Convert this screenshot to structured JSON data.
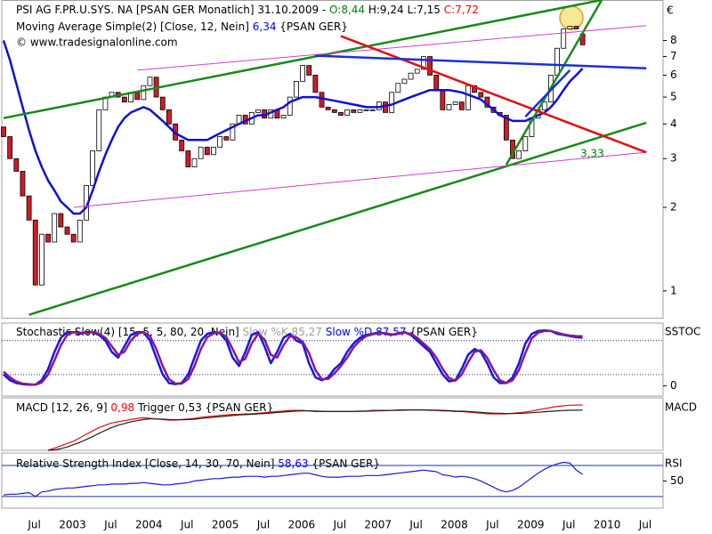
{
  "chart_data": [
    {
      "type": "candlestick",
      "title": [
        {
          "text": "PSI AG F.PR.U.SYS. NA [PSAN GER  Monatlich] 31.10.2009 - ",
          "color": "#000000"
        },
        {
          "text": "O:8,44",
          "color": "#008000"
        },
        {
          "text": " H:9,24 L:7,15 ",
          "color": "#000000"
        },
        {
          "text": "C:7,72",
          "color": "#ff0000"
        }
      ],
      "subtitle": [
        {
          "text": "Moving Average Simple(2) [Close, 12, Nein] ",
          "color": "#000000"
        },
        {
          "text": "6,34",
          "color": "#0000ff"
        },
        {
          "text": " {PSAN GER}",
          "color": "#000000"
        }
      ],
      "credit": "© www.tradesignalonline.com",
      "y_unit": "€",
      "log_scale": true,
      "grid": false,
      "ylim": [
        0.8,
        11.2
      ],
      "yticks": [
        1,
        2,
        3,
        4,
        5,
        6,
        7,
        8
      ],
      "categories": [
        null,
        null,
        null,
        null,
        "Jul",
        null,
        null,
        null,
        null,
        null,
        "2003",
        null,
        null,
        null,
        null,
        null,
        "Jul",
        null,
        null,
        null,
        null,
        null,
        "2004",
        null,
        null,
        null,
        null,
        null,
        "Jul",
        null,
        null,
        null,
        null,
        null,
        "2005",
        null,
        null,
        null,
        null,
        null,
        "Jul",
        null,
        null,
        null,
        null,
        null,
        "2006",
        null,
        null,
        null,
        null,
        null,
        "Jul",
        null,
        null,
        null,
        null,
        null,
        "2007",
        null,
        null,
        null,
        null,
        null,
        "Jul",
        null,
        null,
        null,
        null,
        null,
        "2008",
        null,
        null,
        null,
        null,
        null,
        "Jul",
        null,
        null,
        null,
        null,
        null,
        "2009",
        null,
        null,
        null,
        null,
        null,
        "Jul",
        null,
        null,
        null,
        null,
        null,
        "2010",
        null,
        null,
        null,
        null,
        null,
        "Jul",
        null,
        null,
        null,
        null,
        null
      ],
      "up_color": "#ffffff",
      "down_color": "#d01c28",
      "open": [
        3.9,
        3.6,
        3.0,
        2.7,
        2.2,
        1.8,
        1.05,
        1.6,
        1.5,
        1.9,
        1.7,
        1.6,
        1.5,
        1.8,
        2.4,
        3.2,
        4.5,
        5.0,
        5.2,
        5.0,
        4.8,
        5.2,
        4.9,
        5.5,
        5.9,
        5.0,
        4.5,
        4.0,
        3.5,
        3.2,
        2.8,
        3.0,
        3.3,
        3.1,
        3.3,
        3.6,
        3.5,
        4.0,
        4.3,
        4.0,
        4.4,
        4.5,
        4.2,
        4.5,
        4.2,
        4.3,
        5.0,
        5.7,
        6.5,
        6.0,
        5.2,
        4.6,
        4.5,
        4.4,
        4.3,
        4.5,
        4.4,
        4.5,
        4.5,
        4.5,
        4.8,
        4.4,
        5.2,
        5.6,
        5.8,
        6.1,
        6.3,
        7.0,
        6.0,
        5.3,
        4.5,
        4.7,
        4.8,
        4.5,
        5.5,
        5.2,
        5.0,
        4.6,
        4.4,
        4.3,
        3.5,
        3.0,
        3.2,
        3.6,
        4.2,
        4.5,
        4.8,
        6.0,
        7.5,
        8.8,
        9.0,
        8.44,
        null,
        null,
        null,
        null,
        null,
        null,
        null,
        null,
        null,
        null,
        null,
        null,
        null,
        null
      ],
      "close": [
        3.6,
        3.0,
        2.7,
        2.2,
        1.8,
        1.05,
        1.6,
        1.5,
        1.9,
        1.7,
        1.6,
        1.5,
        1.8,
        2.4,
        3.2,
        4.5,
        5.0,
        5.2,
        5.0,
        4.8,
        5.2,
        4.9,
        5.5,
        5.9,
        5.0,
        4.5,
        4.0,
        3.5,
        3.2,
        2.8,
        3.0,
        3.3,
        3.1,
        3.3,
        3.6,
        3.5,
        4.0,
        4.3,
        4.0,
        4.4,
        4.5,
        4.2,
        4.5,
        4.2,
        4.3,
        5.0,
        5.7,
        6.5,
        6.0,
        5.2,
        4.6,
        4.5,
        4.4,
        4.3,
        4.5,
        4.4,
        4.5,
        4.5,
        4.5,
        4.8,
        4.4,
        5.2,
        5.6,
        5.8,
        6.1,
        6.3,
        7.0,
        6.0,
        5.3,
        4.5,
        4.7,
        4.8,
        4.5,
        5.5,
        5.2,
        5.0,
        4.6,
        4.4,
        4.3,
        3.5,
        3.0,
        3.2,
        3.6,
        4.2,
        4.5,
        4.8,
        6.0,
        7.5,
        8.8,
        9.0,
        8.8,
        7.72,
        null,
        null,
        null,
        null,
        null,
        null,
        null,
        null,
        null,
        null,
        null,
        null,
        null,
        null
      ],
      "ma": {
        "color": "#1010d0",
        "values": [
          8.0,
          6.8,
          5.6,
          4.6,
          3.8,
          3.2,
          2.8,
          2.5,
          2.3,
          2.1,
          2.0,
          1.9,
          1.9,
          2.0,
          2.3,
          2.7,
          3.1,
          3.5,
          3.9,
          4.2,
          4.4,
          4.5,
          4.6,
          4.5,
          4.3,
          4.1,
          3.9,
          3.7,
          3.6,
          3.5,
          3.5,
          3.5,
          3.5,
          3.6,
          3.7,
          3.8,
          3.9,
          4.0,
          4.1,
          4.2,
          4.3,
          4.3,
          4.4,
          4.5,
          4.6,
          4.8,
          4.9,
          5.0,
          5.0,
          5.0,
          4.95,
          4.9,
          4.85,
          4.8,
          4.75,
          4.7,
          4.65,
          4.6,
          4.6,
          4.6,
          4.65,
          4.7,
          4.8,
          4.9,
          5.0,
          5.1,
          5.2,
          5.3,
          5.3,
          5.3,
          5.3,
          5.25,
          5.2,
          5.1,
          5.0,
          4.9,
          4.7,
          4.5,
          4.3,
          4.2,
          4.1,
          4.1,
          4.1,
          4.2,
          4.3,
          4.4,
          4.6,
          4.9,
          5.3,
          5.7,
          6.0,
          6.34,
          null,
          null,
          null,
          null,
          null,
          null,
          null,
          null,
          null,
          null,
          null,
          null,
          null,
          null
        ]
      },
      "trendlines": [
        {
          "color": "#188a18",
          "points": [
            [
              0,
              4.2
            ],
            [
              94,
              11.2
            ]
          ]
        },
        {
          "color": "#188a18",
          "points": [
            [
              79,
              2.85
            ],
            [
              94,
              11.2
            ]
          ]
        },
        {
          "color": "#188a18",
          "points": [
            [
              4,
              0.82
            ],
            [
              101,
              4.04
            ]
          ]
        },
        {
          "color": "#d040d0",
          "points": [
            [
              21,
              6.25
            ],
            [
              101,
              9.05
            ]
          ]
        },
        {
          "color": "#d040d0",
          "points": [
            [
              11,
              2.0
            ],
            [
              101,
              3.16
            ]
          ]
        },
        {
          "color": "#e01010",
          "points": [
            [
              53,
              8.3
            ],
            [
              101,
              3.16
            ]
          ]
        },
        {
          "color": "#1a30d8",
          "points": [
            [
              49,
              7.05
            ],
            [
              101,
              6.35
            ]
          ]
        },
        {
          "color": "#1a30d8",
          "points": [
            [
              82,
              4.25
            ],
            [
              89,
              6.25
            ]
          ]
        }
      ],
      "annotation": {
        "text": "3,33",
        "color": "#008000"
      }
    },
    {
      "type": "line",
      "title": [
        {
          "text": "Stochastic Slow(4) [15, 5, 5, 80, 20, Nein] ",
          "color": "#000000"
        },
        {
          "text": "Slow %K 85,27",
          "color": "#a0a0a0"
        },
        {
          "text": " Slow %D 87,57",
          "color": "#0000ff"
        },
        {
          "text": " {PSAN GER}",
          "color": "#000000"
        }
      ],
      "label": "SSTOC",
      "ylim": [
        -18,
        111
      ],
      "yticks": [
        0
      ],
      "levels": [
        20,
        80
      ],
      "series": [
        {
          "color": "#1818e0",
          "values": [
            20,
            10,
            5,
            3,
            2,
            2,
            10,
            30,
            60,
            85,
            95,
            95,
            92,
            95,
            95,
            90,
            80,
            60,
            50,
            70,
            90,
            95,
            95,
            80,
            50,
            20,
            5,
            3,
            5,
            20,
            50,
            80,
            92,
            95,
            93,
            80,
            50,
            35,
            60,
            90,
            95,
            70,
            40,
            60,
            85,
            92,
            80,
            75,
            40,
            15,
            10,
            15,
            30,
            40,
            60,
            75,
            85,
            90,
            92,
            95,
            92,
            90,
            93,
            95,
            90,
            80,
            70,
            60,
            40,
            20,
            8,
            10,
            30,
            55,
            65,
            60,
            40,
            15,
            5,
            5,
            15,
            40,
            75,
            92,
            97,
            98,
            97,
            92,
            90,
            88,
            86,
            85.27,
            null,
            null,
            null,
            null,
            null,
            null,
            null,
            null,
            null,
            null,
            null,
            null,
            null,
            null
          ]
        },
        {
          "color": "#8a1a8a",
          "values": [
            25,
            15,
            8,
            4,
            3,
            2,
            6,
            20,
            45,
            72,
            90,
            95,
            94,
            93,
            95,
            92,
            85,
            70,
            55,
            60,
            80,
            92,
            95,
            88,
            65,
            35,
            12,
            4,
            4,
            12,
            35,
            65,
            86,
            93,
            94,
            87,
            65,
            42,
            48,
            75,
            92,
            82,
            55,
            50,
            72,
            88,
            86,
            78,
            58,
            28,
            12,
            12,
            22,
            35,
            50,
            68,
            80,
            88,
            91,
            93,
            93,
            91,
            92,
            94,
            92,
            85,
            75,
            65,
            50,
            30,
            14,
            9,
            20,
            42,
            60,
            63,
            50,
            28,
            10,
            5,
            10,
            28,
            58,
            84,
            94,
            97,
            97,
            94,
            91,
            89,
            88,
            87.57,
            null,
            null,
            null,
            null,
            null,
            null,
            null,
            null,
            null,
            null,
            null,
            null,
            null,
            null
          ]
        }
      ]
    },
    {
      "type": "line",
      "title": [
        {
          "text": "MACD [12, 26, 9] ",
          "color": "#000000"
        },
        {
          "text": "0,98",
          "color": "#ff0000"
        },
        {
          "text": " Trigger 0,53 {PSAN GER}",
          "color": "#000000"
        }
      ],
      "label": "MACD",
      "ylim": [
        -3,
        1.6
      ],
      "yticks": [],
      "levels": [],
      "series": [
        {
          "color": "#e01010",
          "values": [
            null,
            null,
            null,
            null,
            null,
            null,
            null,
            -3.0,
            -2.8,
            -2.6,
            -2.4,
            -2.2,
            -1.9,
            -1.6,
            -1.3,
            -1.0,
            -0.8,
            -0.6,
            -0.5,
            -0.4,
            -0.3,
            -0.2,
            -0.15,
            -0.2,
            -0.25,
            -0.3,
            -0.35,
            -0.35,
            -0.3,
            -0.25,
            -0.2,
            -0.1,
            -0.05,
            0.0,
            0.05,
            0.1,
            0.15,
            0.15,
            0.2,
            0.2,
            0.25,
            0.3,
            0.35,
            0.4,
            0.45,
            0.5,
            0.5,
            0.5,
            0.45,
            0.4,
            0.4,
            0.4,
            0.4,
            0.4,
            0.4,
            0.4,
            0.45,
            0.45,
            0.5,
            0.5,
            0.5,
            0.5,
            0.55,
            0.55,
            0.55,
            0.55,
            0.55,
            0.5,
            0.5,
            0.45,
            0.45,
            0.4,
            0.4,
            0.35,
            0.3,
            0.25,
            0.2,
            0.2,
            0.2,
            0.2,
            0.25,
            0.3,
            0.35,
            0.45,
            0.55,
            0.65,
            0.75,
            0.85,
            0.9,
            0.95,
            0.97,
            0.98,
            null,
            null,
            null,
            null,
            null,
            null,
            null,
            null,
            null,
            null,
            null,
            null,
            null,
            null
          ]
        },
        {
          "color": "#202020",
          "values": [
            null,
            null,
            null,
            null,
            null,
            null,
            null,
            -3.0,
            -2.95,
            -2.85,
            -2.7,
            -2.5,
            -2.3,
            -2.05,
            -1.8,
            -1.5,
            -1.25,
            -1.0,
            -0.8,
            -0.65,
            -0.5,
            -0.4,
            -0.3,
            -0.25,
            -0.25,
            -0.27,
            -0.3,
            -0.32,
            -0.32,
            -0.3,
            -0.27,
            -0.22,
            -0.15,
            -0.1,
            -0.05,
            0.0,
            0.05,
            0.1,
            0.13,
            0.16,
            0.2,
            0.23,
            0.27,
            0.32,
            0.36,
            0.4,
            0.44,
            0.46,
            0.46,
            0.44,
            0.42,
            0.41,
            0.4,
            0.4,
            0.4,
            0.4,
            0.42,
            0.43,
            0.45,
            0.47,
            0.48,
            0.49,
            0.51,
            0.52,
            0.53,
            0.54,
            0.54,
            0.53,
            0.52,
            0.5,
            0.48,
            0.45,
            0.43,
            0.4,
            0.37,
            0.33,
            0.29,
            0.26,
            0.24,
            0.22,
            0.22,
            0.24,
            0.26,
            0.3,
            0.34,
            0.38,
            0.42,
            0.46,
            0.49,
            0.51,
            0.52,
            0.53,
            null,
            null,
            null,
            null,
            null,
            null,
            null,
            null,
            null,
            null,
            null,
            null,
            null,
            null
          ]
        }
      ]
    },
    {
      "type": "line",
      "title": [
        {
          "text": "Relative Strength Index [Close, 14, 30, 70, Nein] ",
          "color": "#000000"
        },
        {
          "text": "58,63",
          "color": "#0000ff"
        },
        {
          "text": " {PSAN GER}",
          "color": "#000000"
        }
      ],
      "label": "RSI",
      "ylim": [
        15,
        86
      ],
      "yticks": [
        50
      ],
      "levels": [
        30,
        70
      ],
      "series": [
        {
          "color": "#1818e0",
          "values": [
            32,
            33,
            33,
            34,
            35,
            30,
            36,
            37,
            39,
            40,
            41,
            41,
            42,
            43,
            44,
            45,
            45,
            46,
            46,
            46,
            47,
            47,
            48,
            47,
            46,
            45,
            45,
            46,
            47,
            48,
            50,
            51,
            52,
            53,
            53,
            54,
            55,
            55,
            56,
            56,
            56,
            55,
            56,
            56,
            57,
            58,
            59,
            60,
            60,
            58,
            56,
            55,
            55,
            55,
            56,
            56,
            56,
            57,
            57,
            57,
            58,
            59,
            60,
            61,
            62,
            63,
            64,
            63,
            62,
            58,
            57,
            55,
            56,
            55,
            53,
            50,
            46,
            42,
            38,
            36,
            38,
            42,
            48,
            54,
            60,
            65,
            69,
            72,
            74,
            73,
            64,
            58.63,
            null,
            null,
            null,
            null,
            null,
            null,
            null,
            null,
            null,
            null,
            null,
            null,
            null,
            null
          ]
        }
      ]
    }
  ]
}
